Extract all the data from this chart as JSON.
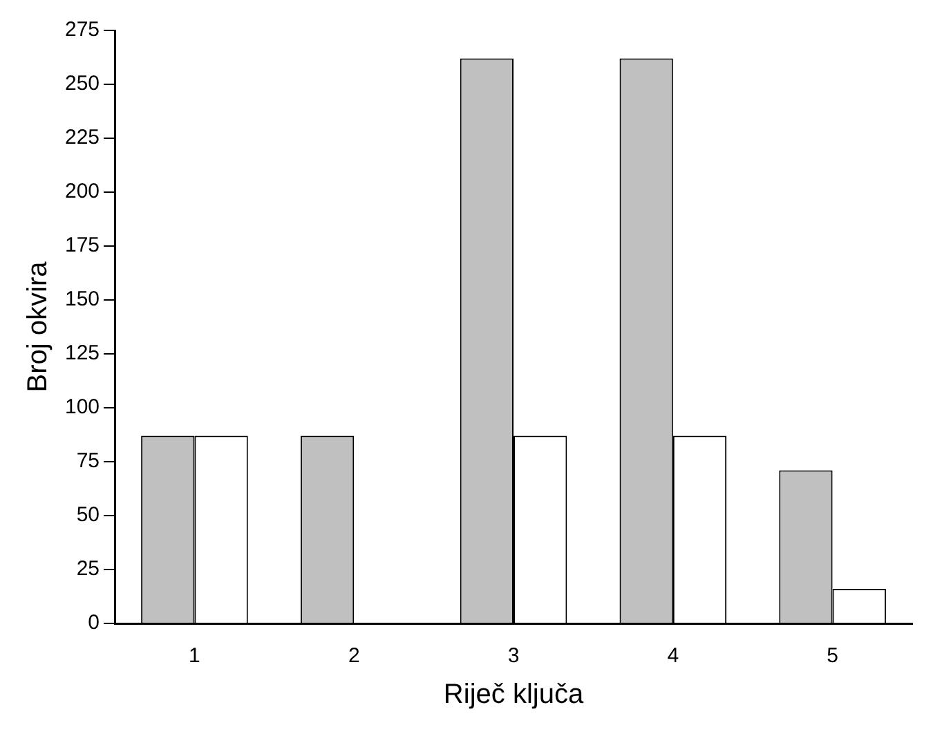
{
  "chart_data": {
    "type": "bar",
    "xlabel": "Riječ ključa",
    "ylabel": "Broj okvira",
    "categories": [
      "1",
      "2",
      "3",
      "4",
      "5"
    ],
    "series": [
      {
        "color": "#c0c0c0",
        "values": [
          87,
          87,
          262,
          262,
          71
        ]
      },
      {
        "color": "#ffffff",
        "values": [
          87,
          0,
          87,
          87,
          16
        ]
      }
    ],
    "ylim": [
      0,
      275
    ],
    "yticks": [
      0,
      25,
      50,
      75,
      100,
      125,
      150,
      175,
      200,
      225,
      250,
      275
    ],
    "grid": false,
    "legend": false
  }
}
